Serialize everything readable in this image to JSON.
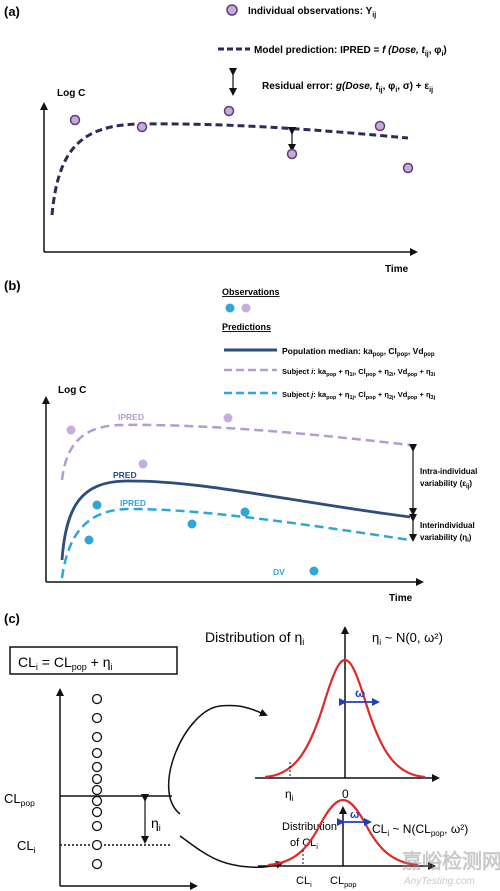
{
  "panel_a": {
    "label": "(a)",
    "legend_obs": "Individual observations: Y",
    "legend_obs_sub": "ij",
    "legend_model_prefix": "Model prediction: IPRED = ",
    "legend_model_func": "f (Dose, t",
    "legend_model_sub1": "ij",
    "legend_model_mid": ", φ",
    "legend_model_sub2": "i",
    "legend_model_end": ")",
    "legend_resid_prefix": "Residual error: ",
    "legend_resid_func": "g(Dose, t",
    "legend_resid_sub1": "ij",
    "legend_resid_mid": ", φ",
    "legend_resid_sub2": "i",
    "legend_resid_end": ", σ) + ε",
    "legend_resid_sub3": "ij",
    "ylabel": "Log C",
    "xlabel": "Time",
    "colors": {
      "point_fill": "#c9a8dc",
      "point_stroke": "#5a3f73",
      "curve": "#2b2b59"
    }
  },
  "panel_b": {
    "label": "(b)",
    "obs_heading": "Observations",
    "pred_heading": "Predictions",
    "pop_label": "Population median: ka",
    "pop_sub1": "pop",
    "pop_sep1": ", Cl",
    "pop_sub2": "pop",
    "pop_sep2": ", Vd",
    "pop_sub3": "pop",
    "subj1_text": "Subject ",
    "subj1_i": "i",
    "subj1_rest": ": ka",
    "subj1_s1": "pop",
    "subj1_p1": " + η",
    "subj1_e1": "1i",
    "subj1_p2": ", Cl",
    "subj1_s2": "pop",
    "subj1_p3": " + η",
    "subj1_e2": "2i",
    "subj1_p4": ", Vd",
    "subj1_s3": "pop",
    "subj1_p5": " + η",
    "subj1_e3": "3i",
    "subj2_text": "Subject ",
    "subj2_j": "j",
    "subj2_rest": ": ka",
    "subj2_s1": "pop",
    "subj2_p1": " + η",
    "subj2_e1": "1j",
    "subj2_p2": ", Cl",
    "subj2_s2": "pop",
    "subj2_p3": " + η",
    "subj2_e2": "2j",
    "subj2_p4": ", Vd",
    "subj2_s3": "pop",
    "subj2_p5": " + η",
    "subj2_e3": "3j",
    "ylabel": "Log C",
    "xlabel": "Time",
    "ipred_top": "IPRED",
    "pred": "PRED",
    "ipred_bottom": "IPRED",
    "dv": "DV",
    "intra_line1": "Intra-individual",
    "intra_line2": "variability (ε",
    "intra_sub": "ij",
    "intra_end": ")",
    "inter_line1": "Interindividual",
    "inter_line2": "variability (η",
    "inter_sub": "i",
    "inter_end": ")",
    "colors": {
      "pop": "#2e4d7f",
      "subj_i": "#b59bd0",
      "subj_j": "#2fa6d8"
    }
  },
  "panel_c": {
    "label": "(c)",
    "eq_lhs": "CL",
    "eq_lhs_sub": "i",
    "eq_mid": " = CL",
    "eq_mid_sub": "pop",
    "eq_end": " + η",
    "eq_end_sub": "i",
    "dist_eta_title": "Distribution of η",
    "dist_eta_sub": "i",
    "eta_model": "η",
    "eta_model_sub": "i",
    "eta_model_rest": " ~ N(0, ω²)",
    "omega": "ω",
    "eta_tick": "η",
    "eta_tick_sub": "i",
    "zero_tick": "0",
    "dist_cl_line1": "Distribution",
    "dist_cl_line2": "of CL",
    "dist_cl_sub": "i",
    "cl_model": "CL",
    "cl_model_sub": "i",
    "cl_model_rest": " ~ N(CL",
    "cl_model_sub2": "pop",
    "cl_model_end": ", ω²)",
    "clpop_left": "CL",
    "clpop_left_sub": "pop",
    "cli_left": "CL",
    "cli_left_sub": "i",
    "eta_bracket": "η",
    "eta_bracket_sub": "i",
    "cli_tick": "CL",
    "cli_tick_sub": "i",
    "clpop_tick": "CL",
    "clpop_tick_sub": "pop",
    "colors": {
      "normal_curve": "#e02a2a",
      "omega_arrow": "#1f3fbf"
    }
  },
  "watermark": {
    "text_cn": "嘉峪检测网",
    "text_en": "AnyTesting.com"
  }
}
